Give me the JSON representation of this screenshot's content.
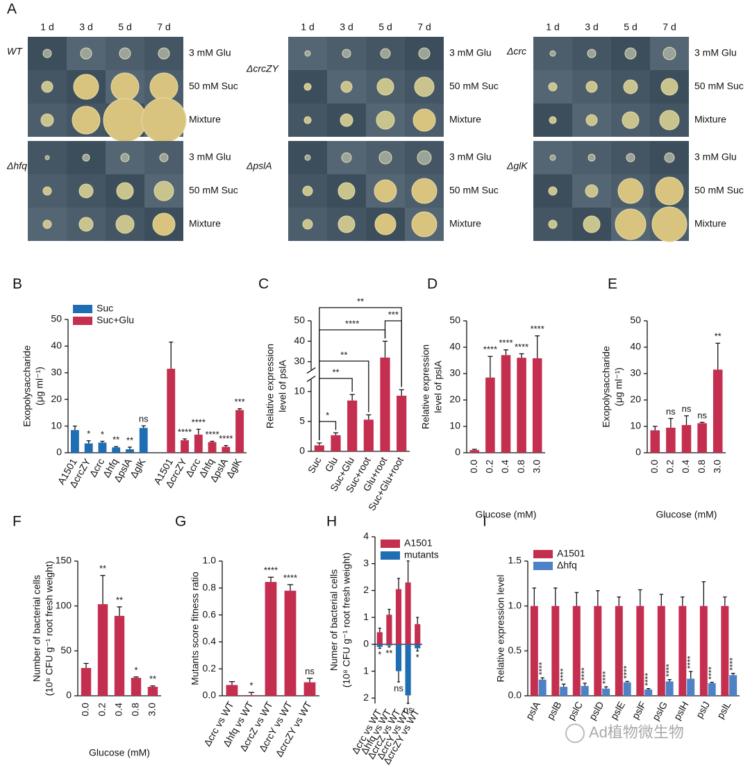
{
  "panel_a": {
    "letter": "A",
    "days": [
      "1 d",
      "3 d",
      "5 d",
      "7 d"
    ],
    "conditions": [
      "3 mM Glu",
      "50 mM Suc",
      "Mixture"
    ],
    "strains": [
      "WT",
      "ΔcrcZY",
      "Δcrc",
      "Δhfq",
      "ΔpslA",
      "ΔglK"
    ]
  },
  "chart_data": [
    {
      "type": "bar",
      "panel": "B",
      "ylabel": [
        "Exopolysaccharide",
        "(μg ml⁻¹)"
      ],
      "categories": [
        "A1501",
        "ΔcrcZY",
        "Δcrc",
        "Δhfq",
        "ΔpslA",
        "ΔglK",
        "A1501",
        "ΔcrcZY",
        "Δcrc",
        "Δhfq",
        "ΔpslA",
        "ΔglK"
      ],
      "series": [
        {
          "name": "Suc",
          "color": "#1f6db3",
          "values": [
            8.5,
            3.5,
            3.8,
            2.0,
            1.3,
            9.3,
            null,
            null,
            null,
            null,
            null,
            null
          ],
          "errors": [
            1.5,
            1.0,
            0.5,
            0.3,
            0.8,
            0.8,
            null,
            null,
            null,
            null,
            null,
            null
          ],
          "significance": [
            null,
            "*",
            "*",
            "**",
            "**",
            "ns",
            null,
            null,
            null,
            null,
            null,
            null
          ]
        },
        {
          "name": "Suc+Glu",
          "color": "#c42e4f",
          "values": [
            null,
            null,
            null,
            null,
            null,
            null,
            31.5,
            4.7,
            6.8,
            4.0,
            2.2,
            16.0
          ],
          "errors": [
            null,
            null,
            null,
            null,
            null,
            null,
            10,
            0.5,
            2.0,
            0.3,
            0.5,
            0.5
          ],
          "significance": [
            null,
            null,
            null,
            null,
            null,
            null,
            null,
            "****",
            "****",
            "****",
            "****",
            "***"
          ]
        }
      ],
      "ylim": [
        0,
        50
      ],
      "yticks": [
        0,
        10,
        20,
        30,
        40,
        50
      ],
      "legend": "upper left"
    },
    {
      "type": "bar",
      "panel": "C",
      "ylabel": [
        "Relative expression",
        "level of pslA"
      ],
      "categories": [
        "Suc",
        "Glu",
        "Suc+Glu",
        "Suc+root",
        "Glu+root",
        "Suc+Glu+root"
      ],
      "values": [
        1.0,
        2.7,
        8.5,
        5.3,
        32,
        9.3
      ],
      "errors": [
        0.4,
        0.4,
        1.0,
        0.8,
        8,
        1.0
      ],
      "color": "#c42e4f",
      "ylim": [
        0,
        50
      ],
      "ybreak": [
        12,
        26
      ],
      "yticks": [
        0,
        5,
        10,
        30,
        40,
        50
      ],
      "comparisons": [
        {
          "pair": [
            "Suc",
            "Glu"
          ],
          "label": "*"
        },
        {
          "pair": [
            "Suc",
            "Suc+Glu"
          ],
          "label": "**"
        },
        {
          "pair": [
            "Suc",
            "Suc+root"
          ],
          "label": "**"
        },
        {
          "pair": [
            "Suc",
            "Glu+root"
          ],
          "label": "****"
        },
        {
          "pair": [
            "Suc",
            "Suc+Glu+root"
          ],
          "label": "**"
        },
        {
          "pair": [
            "Glu+root",
            "Suc+Glu+root"
          ],
          "label": "***"
        }
      ]
    },
    {
      "type": "bar",
      "panel": "D",
      "ylabel": [
        "Relative expression",
        "level of pslA"
      ],
      "xlabel": "Glucose (mM)",
      "categories": [
        "0.0",
        "0.2",
        "0.4",
        "0.8",
        "3.0"
      ],
      "values": [
        1.0,
        28.5,
        37,
        36,
        35.8
      ],
      "errors": [
        0.3,
        8,
        2,
        1.5,
        8.5
      ],
      "significance": [
        null,
        "****",
        "****",
        "****",
        "****"
      ],
      "color": "#c42e4f",
      "ylim": [
        0,
        50
      ],
      "yticks": [
        0,
        10,
        20,
        30,
        40,
        50
      ]
    },
    {
      "type": "bar",
      "panel": "E",
      "ylabel": [
        "Exopolysaccharide",
        "(μg ml⁻¹)"
      ],
      "xlabel": "Glucose (mM)",
      "categories": [
        "0.0",
        "0.2",
        "0.4",
        "0.8",
        "3.0"
      ],
      "values": [
        8.5,
        9.5,
        10.5,
        11.2,
        31.5
      ],
      "errors": [
        1.5,
        3.5,
        3.5,
        0.3,
        10
      ],
      "significance": [
        null,
        "ns",
        "ns",
        "ns",
        "**"
      ],
      "color": "#c42e4f",
      "ylim": [
        0,
        50
      ],
      "yticks": [
        0,
        10,
        20,
        30,
        40,
        50
      ]
    },
    {
      "type": "bar",
      "panel": "F",
      "ylabel": [
        "Number of bacterial cells",
        "(10⁸ CFU g⁻¹ root fresh weight)"
      ],
      "xlabel": "Glucose (mM)",
      "categories": [
        "0.0",
        "0.2",
        "0.4",
        "0.8",
        "3.0"
      ],
      "values": [
        31,
        102,
        89,
        20,
        10
      ],
      "errors": [
        5,
        32,
        10,
        1,
        1
      ],
      "significance": [
        null,
        "**",
        "**",
        "*",
        "**"
      ],
      "color": "#c42e4f",
      "ylim": [
        0,
        150
      ],
      "yticks": [
        0,
        50,
        100,
        150
      ]
    },
    {
      "type": "bar",
      "panel": "G",
      "ylabel": [
        "Mutants score fitness ratio"
      ],
      "categories": [
        "Δcrc vs WT",
        "Δhfq vs WT",
        "ΔcrcZ vs WT",
        "ΔcrcY vs WT",
        "ΔcrcZY vs WT"
      ],
      "values": [
        0.08,
        0.005,
        0.845,
        0.78,
        0.1
      ],
      "errors": [
        0.025,
        0.02,
        0.035,
        0.045,
        0.03
      ],
      "significance": [
        null,
        "*",
        "****",
        "****",
        "ns"
      ],
      "color": "#c42e4f",
      "ylim": [
        0,
        1.0
      ],
      "yticks": [
        {
          "value": 0,
          "label": "0.0"
        },
        0.2,
        0.4,
        0.6,
        0.8,
        {
          "value": 1.0,
          "label": "1.0"
        }
      ]
    },
    {
      "type": "bar",
      "panel": "H",
      "ylabel": [
        "Numer of bacterial cells",
        "(10⁸ CFU g⁻¹ root fresh weight)"
      ],
      "categories": [
        "Δcrc vs WT",
        "Δhfq vs WT",
        "ΔcrcZ vs WT",
        "ΔcrcY vs WT",
        "ΔcrcZY vs WT"
      ],
      "series": [
        {
          "name": "A1501",
          "color": "#c42e4f",
          "values": [
            0.45,
            1.1,
            2.05,
            2.3,
            0.75
          ],
          "errors": [
            0.15,
            0.2,
            0.4,
            0.8,
            0.25
          ]
        },
        {
          "name": "mutants",
          "color": "#1f6db3",
          "direction": "down",
          "values": [
            0.1,
            0.05,
            1.0,
            1.9,
            0.15
          ],
          "errors": [
            0.05,
            0.05,
            0.4,
            0.3,
            0.1
          ]
        }
      ],
      "significance": [
        "*",
        "**",
        "ns",
        "ns",
        "*"
      ],
      "ylim": [
        -2.2,
        4
      ],
      "yticks": [
        {
          "value": -2,
          "label": "2"
        },
        {
          "value": -1,
          "label": "1"
        },
        0,
        1,
        2,
        3,
        4
      ],
      "legend": "upper left"
    },
    {
      "type": "bar",
      "panel": "I",
      "ylabel": [
        "Relative expression level"
      ],
      "categories": [
        "pslA",
        "pslB",
        "pslC",
        "pslD",
        "pslE",
        "pslF",
        "pslG",
        "pslH",
        "pslJ",
        "pslL"
      ],
      "series": [
        {
          "name": "A1501",
          "color": "#c42e4f",
          "values": [
            1.0,
            1.0,
            1.0,
            1.0,
            1.0,
            1.0,
            1.0,
            1.0,
            1.0,
            1.0
          ],
          "errors": [
            0.2,
            0.2,
            0.15,
            0.17,
            0.1,
            0.18,
            0.13,
            0.1,
            0.27,
            0.1
          ]
        },
        {
          "name": "Δhfq",
          "color": "#4f81c7",
          "values": [
            0.18,
            0.1,
            0.11,
            0.08,
            0.15,
            0.07,
            0.16,
            0.19,
            0.14,
            0.23
          ],
          "errors": [
            0.02,
            0.03,
            0.03,
            0.02,
            0.01,
            0.01,
            0.02,
            0.08,
            0.01,
            0.02
          ],
          "significance": [
            "****",
            "****",
            "****",
            "****",
            "****",
            "****",
            "****",
            "****",
            "****",
            "****"
          ]
        }
      ],
      "ylim": [
        0,
        1.5
      ],
      "yticks": [
        {
          "value": 0,
          "label": "0.0"
        },
        0.5,
        {
          "value": 1.0,
          "label": "1.0"
        },
        1.5
      ],
      "legend": "upper left"
    }
  ],
  "watermark": "Ad植物微生物"
}
